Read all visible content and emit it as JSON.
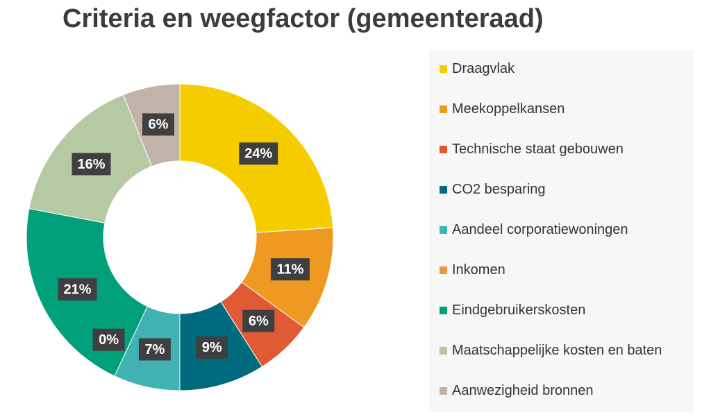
{
  "chart_data": {
    "type": "pie",
    "style": "donut",
    "title": "Criteria en weegfactor (gemeenteraad)",
    "legend_position": "right",
    "categories": [
      "Draagvlak",
      "Meekoppelkansen",
      "Technische staat gebouwen",
      "CO2 besparing",
      "Aandeel corporatiewoningen",
      "Inkomen",
      "Eindgebruikerskosten",
      "Maatschappelijke kosten en baten",
      "Aanwezigheid bronnen"
    ],
    "values": [
      24,
      11,
      6,
      9,
      7,
      0,
      21,
      16,
      6
    ],
    "labels": [
      "24%",
      "11%",
      "6%",
      "9%",
      "7%",
      "0%",
      "21%",
      "16%",
      "6%"
    ],
    "colors": [
      "#F5CC00",
      "#EE9A22",
      "#E05A34",
      "#006A7F",
      "#40B2B4",
      "#F0953A",
      "#00A07A",
      "#B5C9A2",
      "#C2B3A8"
    ]
  }
}
